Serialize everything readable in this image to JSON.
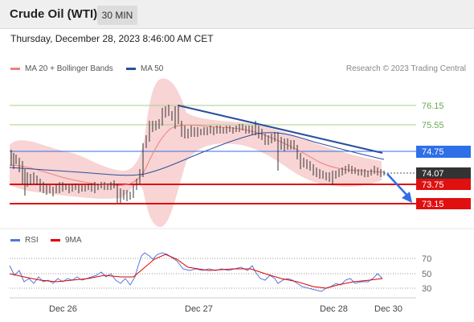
{
  "header": {
    "title": "Crude Oil (WTI)",
    "interval": "30 MIN"
  },
  "timestamp": "Thursday, December 28, 2023 8:46:00 AM CET",
  "legend": {
    "items": [
      {
        "label": "MA 20 + Bollinger Bands",
        "color": "#f08080"
      },
      {
        "label": "MA 50",
        "color": "#2b4f9e"
      }
    ],
    "credit": "Research © 2023 Trading Central"
  },
  "rsi_legend": {
    "items": [
      {
        "label": "RSI",
        "color": "#5577dd"
      },
      {
        "label": "9MA",
        "color": "#dd0000"
      }
    ]
  },
  "price_levels": [
    {
      "value": "76.15",
      "kind": "resistance-target"
    },
    {
      "value": "75.55",
      "kind": "resistance-target"
    },
    {
      "value": "74.75",
      "kind": "pivot"
    },
    {
      "value": "74.07",
      "kind": "last"
    },
    {
      "value": "73.75",
      "kind": "support"
    },
    {
      "value": "73.15",
      "kind": "support"
    }
  ],
  "rsi_levels": [
    "70",
    "50",
    "30"
  ],
  "x_labels": [
    "Dec 26",
    "Dec 27",
    "Dec 28",
    "Dec 30"
  ],
  "colors": {
    "target_line": "#a6d28a",
    "pivot": "#2f6fe8",
    "support": "#e01010",
    "last": "#333333",
    "trend": "#2b4f9e",
    "band": "#f6c9c9",
    "candle": "#333333"
  }
}
